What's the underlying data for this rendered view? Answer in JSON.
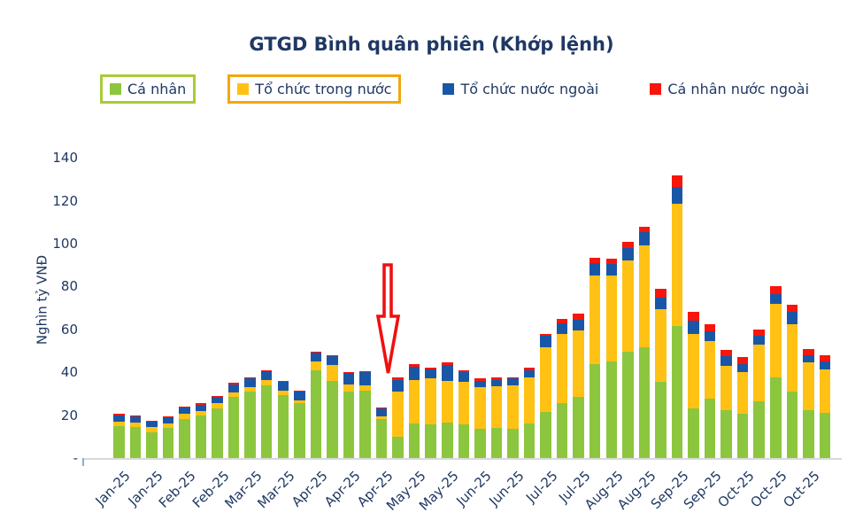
{
  "title": "GTGD Bình quân phiên (Khớp lệnh)",
  "legend": {
    "items": [
      {
        "label": "Cá nhân",
        "swatch_color": "#8CC63E",
        "box_color": "#A8CC38"
      },
      {
        "label": "Tổ chức trong nước",
        "swatch_color": "#FFC214",
        "box_color": "#F3A70D"
      },
      {
        "label": "Tổ chức nước ngoài",
        "swatch_color": "#1A56A6",
        "box_color": null
      },
      {
        "label": "Cá nhân nước ngoài",
        "swatch_color": "#F8150C",
        "box_color": null
      }
    ]
  },
  "y_axis": {
    "title": "Nghìn tỷ VNĐ",
    "tick_labels": [
      "-",
      "20",
      "40",
      "60",
      "80",
      "100",
      "120",
      "140"
    ],
    "tick_values": [
      0,
      20,
      40,
      60,
      80,
      100,
      120,
      140
    ]
  },
  "x_axis": {
    "note": "labels shown under every other bar",
    "tick_labels": [
      "Jan-25",
      "Jan-25",
      "Feb-25",
      "Feb-25",
      "Mar-25",
      "Mar-25",
      "Apr-25",
      "Apr-25",
      "Apr-25",
      "May-25",
      "May-25",
      "Jun-25",
      "Jun-25",
      "Jul-25",
      "Jul-25",
      "Aug-25",
      "Aug-25",
      "Sep-25",
      "Sep-25",
      "Oct-25",
      "Oct-25",
      "Oct-25"
    ]
  },
  "annotation": {
    "shape": "hollow-down-arrow",
    "color": "#EF1010"
  },
  "colors": {
    "text": "#1F3864",
    "axis_line": "#D9D9D9"
  },
  "chart_data": {
    "type": "bar",
    "stacked": true,
    "title": "GTGD Bình quân phiên (Khớp lệnh)",
    "ylabel": "Nghìn tỷ VNĐ",
    "ylim": [
      0,
      140
    ],
    "bars": 44,
    "x_tick_labels_every_other_bar": [
      "Jan-25",
      "Jan-25",
      "Feb-25",
      "Feb-25",
      "Mar-25",
      "Mar-25",
      "Apr-25",
      "Apr-25",
      "Apr-25",
      "May-25",
      "May-25",
      "Jun-25",
      "Jun-25",
      "Jul-25",
      "Jul-25",
      "Aug-25",
      "Aug-25",
      "Sep-25",
      "Sep-25",
      "Oct-25",
      "Oct-25",
      "Oct-25"
    ],
    "series": [
      {
        "name": "Cá nhân",
        "color": "#8CC63E",
        "values": [
          15,
          14.5,
          12,
          14,
          18,
          20,
          23,
          28.5,
          31,
          34,
          29.5,
          25.5,
          41,
          36,
          31,
          31.5,
          18,
          10,
          16,
          15.5,
          16.5,
          15.5,
          13.5,
          14,
          13.5,
          16,
          21.5,
          25.5,
          28.5,
          44,
          45,
          49.5,
          51.5,
          35.5,
          61.5,
          23,
          27.5,
          22.5,
          20.5,
          26.5,
          37.5,
          31,
          22.5,
          21
        ]
      },
      {
        "name": "Tổ chức trong nước",
        "color": "#FFC214",
        "values": [
          2,
          2,
          2.5,
          2,
          2.5,
          2,
          2.5,
          2,
          2,
          2.5,
          2,
          1.5,
          4,
          7.5,
          3.5,
          2.5,
          1.5,
          21,
          20.5,
          21.5,
          19.5,
          20,
          19.5,
          19.5,
          20.5,
          21.5,
          30,
          32.5,
          31,
          41,
          40,
          42.5,
          47.5,
          34,
          57,
          35,
          27,
          20.5,
          19.5,
          26.5,
          34.5,
          31.5,
          22,
          20.5
        ]
      },
      {
        "name": "Tổ chức nước ngoài",
        "color": "#1A56A6",
        "values": [
          3,
          3,
          2.5,
          3,
          3,
          3,
          3,
          4,
          4,
          4,
          4,
          4,
          4,
          4,
          5,
          6,
          3.5,
          5.5,
          6,
          4.5,
          7.5,
          4.5,
          3,
          3,
          3,
          3.5,
          5.5,
          5,
          5,
          6,
          5.5,
          6,
          6.5,
          5.5,
          8,
          6,
          4.5,
          4.5,
          4,
          4,
          4.5,
          5.5,
          3.5,
          3.5
        ]
      },
      {
        "name": "Cá nhân nước ngoài",
        "color": "#F8150C",
        "values": [
          0.5,
          0.5,
          0.5,
          0.5,
          0.5,
          0.5,
          0.5,
          0.5,
          0.5,
          0.5,
          0.5,
          0.5,
          0.5,
          0.5,
          0.5,
          0.5,
          0.5,
          1,
          1.5,
          0.5,
          1,
          1,
          1,
          1,
          0.5,
          1,
          1,
          2,
          3,
          2.5,
          2.5,
          3,
          2.5,
          4,
          5.5,
          4,
          3.5,
          3,
          3,
          3,
          3.5,
          3.5,
          3,
          3
        ]
      }
    ],
    "annotation_note": "red hollow arrow pointing down at the mid-April dip bar"
  }
}
